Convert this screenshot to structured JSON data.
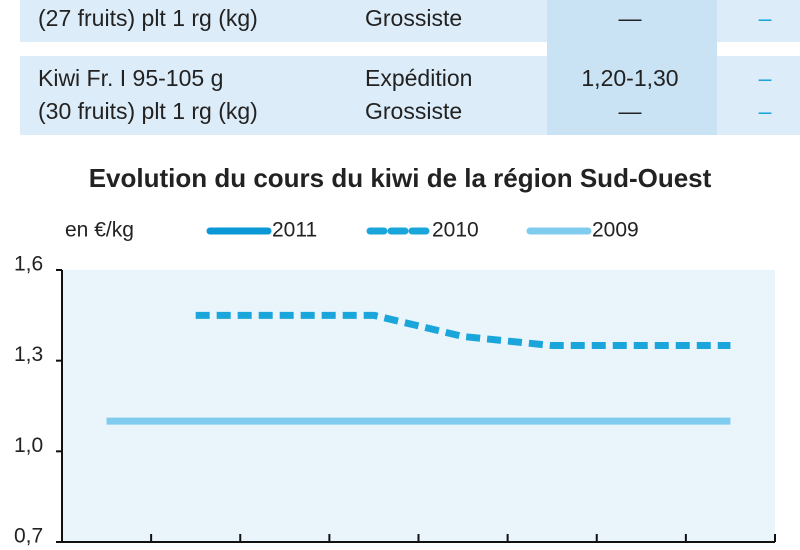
{
  "table": {
    "rows": [
      [
        "(27 fruits) plt 1 rg (kg)",
        "Grossiste",
        "—",
        "–"
      ],
      [
        "Kiwi Fr. I 95-105 g",
        "Expédition",
        "1,20-1,30",
        "–"
      ],
      [
        "(30 fruits) plt 1 rg (kg)",
        "Grossiste",
        "—",
        "–"
      ]
    ]
  },
  "chart_data": {
    "type": "line",
    "title": "Evolution du cours du kiwi de la région Sud-Ouest",
    "y_label": "en €/kg",
    "categories": [
      null,
      null,
      null,
      null,
      null,
      null,
      null,
      null
    ],
    "series": [
      {
        "name": "2011",
        "color": "#0a98d6",
        "dashed": false,
        "values": [
          null,
          null,
          null,
          null,
          null,
          null,
          null,
          null
        ]
      },
      {
        "name": "2010",
        "color": "#1ba6db",
        "dashed": true,
        "values": [
          null,
          1.45,
          1.45,
          1.45,
          1.38,
          1.35,
          1.35,
          1.35
        ]
      },
      {
        "name": "2009",
        "color": "#80ccef",
        "dashed": false,
        "values": [
          1.1,
          1.1,
          1.1,
          1.1,
          1.1,
          1.1,
          1.1,
          1.1
        ]
      }
    ],
    "ylim": [
      0.7,
      1.6
    ],
    "yticks": [
      {
        "value": 0.7,
        "label": "0,7"
      },
      {
        "value": 1.0,
        "label": "1,0"
      },
      {
        "value": 1.3,
        "label": "1,3"
      },
      {
        "value": 1.6,
        "label": "1,6"
      }
    ]
  }
}
